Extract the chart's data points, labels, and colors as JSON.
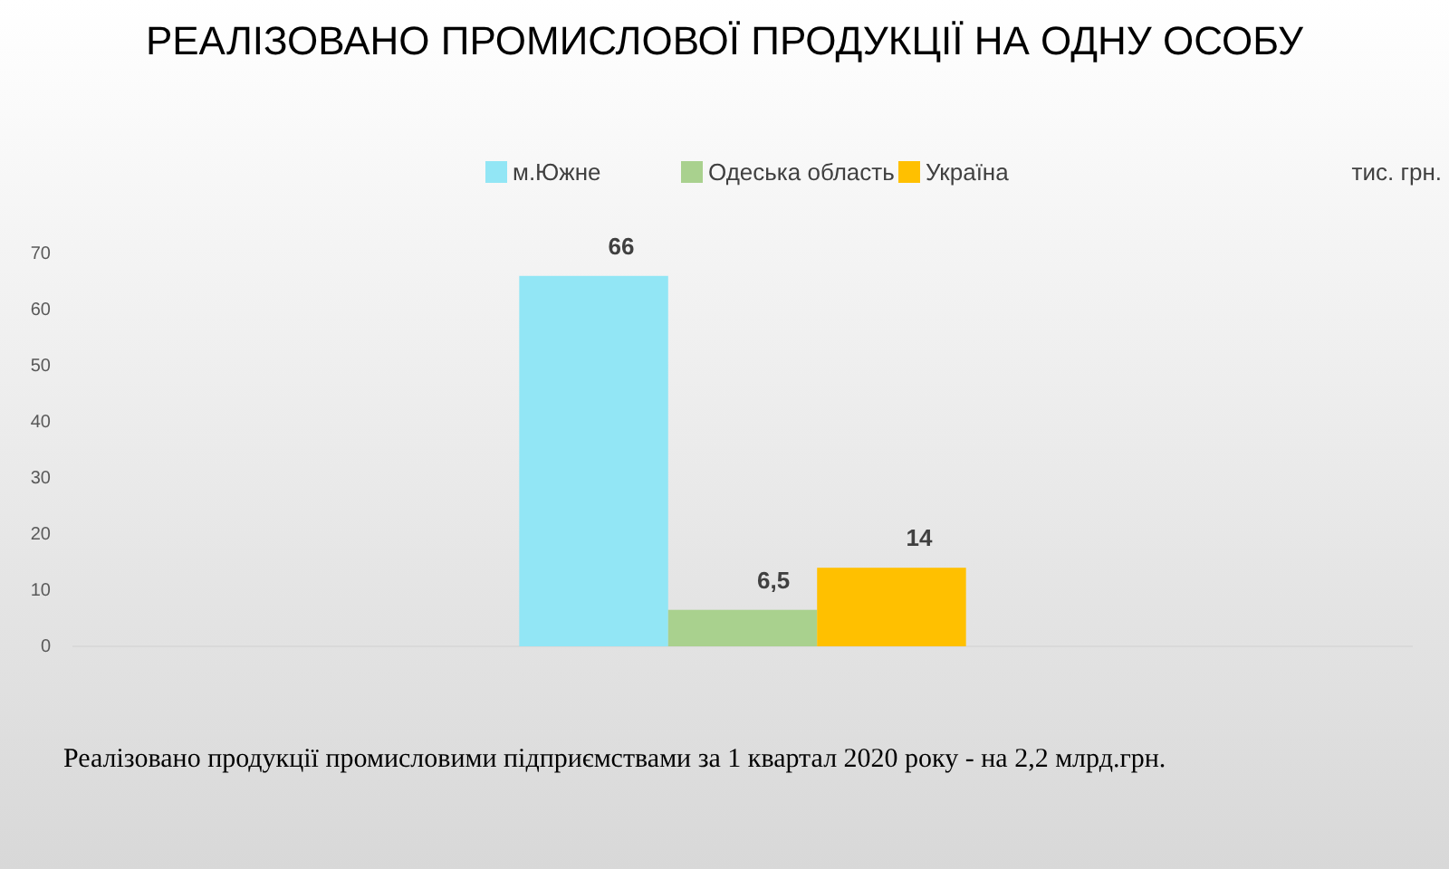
{
  "chart_data": {
    "type": "bar",
    "title": "РЕАЛІЗОВАНО ПРОМИСЛОВОЇ ПРОДУКЦІЇ НА ОДНУ ОСОБУ",
    "categories": [
      null
    ],
    "series": [
      {
        "name": "м.Южне",
        "color": "#92e6f5",
        "values": [
          66
        ],
        "value_labels": [
          "66"
        ]
      },
      {
        "name": "Одеська область",
        "color": "#a9d18e",
        "values": [
          6.5
        ],
        "value_labels": [
          "6,5"
        ]
      },
      {
        "name": "Україна",
        "color": "#ffc000",
        "values": [
          14
        ],
        "value_labels": [
          "14"
        ]
      }
    ],
    "ylim": [
      0,
      70
    ],
    "yticks": [
      0,
      10,
      20,
      30,
      40,
      50,
      60,
      70
    ],
    "grid": false,
    "legend": "top",
    "annotations": [
      "тис. грн.",
      "Реалізовано продукції промисловими підприємствами за 1 квартал 2020 року - на 2,2 млрд.грн."
    ]
  }
}
